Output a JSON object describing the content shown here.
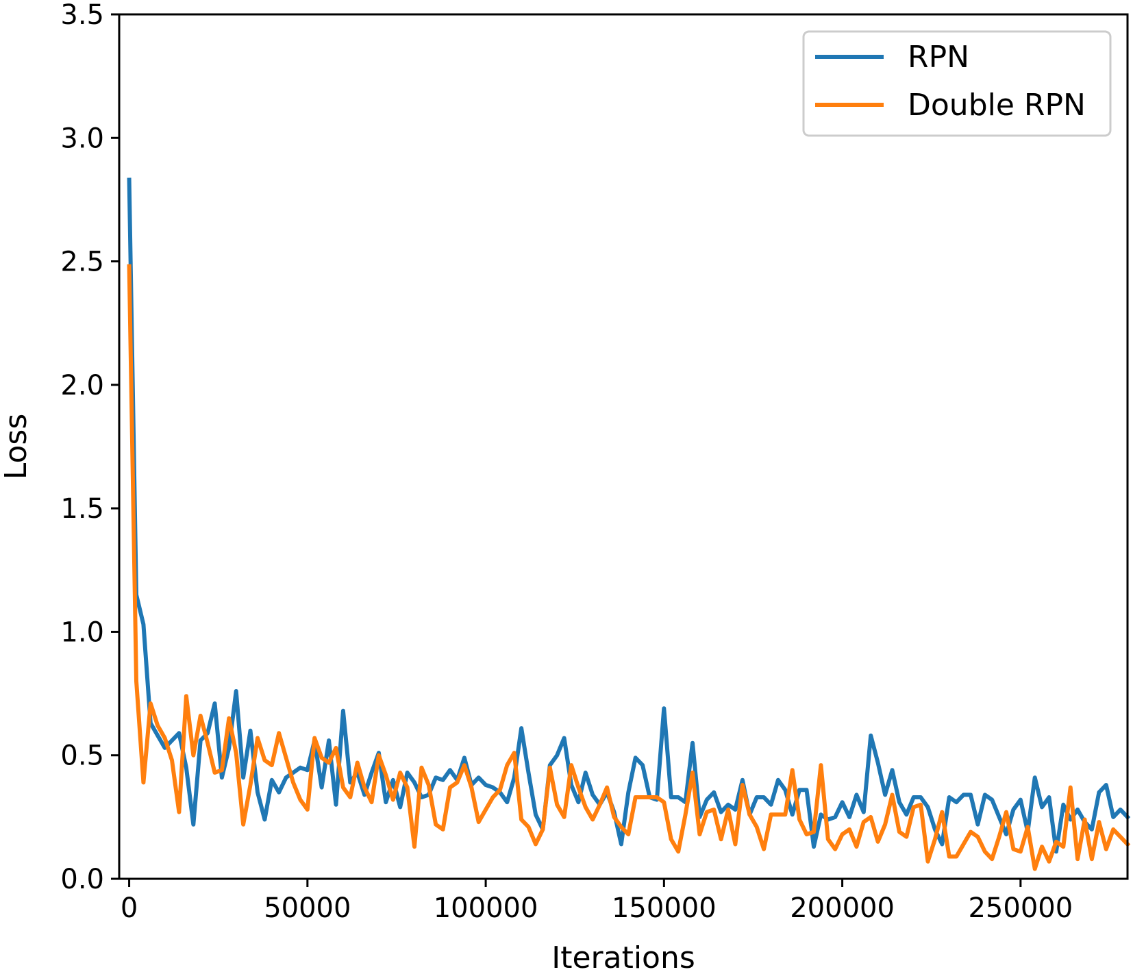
{
  "chart_data": {
    "type": "line",
    "title": "",
    "xlabel": "Iterations",
    "ylabel": "Loss",
    "xlim": [
      -2800,
      280000
    ],
    "ylim": [
      0,
      3.5
    ],
    "xticks": [
      0,
      50000,
      100000,
      150000,
      200000,
      250000
    ],
    "xtick_labels": [
      "0",
      "50000",
      "100000",
      "150000",
      "200000",
      "250000"
    ],
    "yticks": [
      0,
      0.5,
      1.0,
      1.5,
      2.0,
      2.5,
      3.0,
      3.5
    ],
    "ytick_labels": [
      "0.0",
      "0.5",
      "1.0",
      "1.5",
      "2.0",
      "2.5",
      "3.0",
      "3.5"
    ],
    "grid": false,
    "legend_position": "top-right",
    "x": [
      0,
      2000,
      4000,
      6000,
      8000,
      10000,
      12000,
      14000,
      16000,
      18000,
      20000,
      22000,
      24000,
      26000,
      28000,
      30000,
      32000,
      34000,
      36000,
      38000,
      40000,
      42000,
      44000,
      46000,
      48000,
      50000,
      52000,
      54000,
      56000,
      58000,
      60000,
      62000,
      64000,
      66000,
      68000,
      70000,
      72000,
      74000,
      76000,
      78000,
      80000,
      82000,
      84000,
      86000,
      88000,
      90000,
      92000,
      94000,
      96000,
      98000,
      100000,
      102000,
      104000,
      106000,
      108000,
      110000,
      112000,
      114000,
      116000,
      118000,
      120000,
      122000,
      124000,
      126000,
      128000,
      130000,
      132000,
      134000,
      136000,
      138000,
      140000,
      142000,
      144000,
      146000,
      148000,
      150000,
      152000,
      154000,
      156000,
      158000,
      160000,
      162000,
      164000,
      166000,
      168000,
      170000,
      172000,
      174000,
      176000,
      178000,
      180000,
      182000,
      184000,
      186000,
      188000,
      190000,
      192000,
      194000,
      196000,
      198000,
      200000,
      202000,
      204000,
      206000,
      208000,
      210000,
      212000,
      214000,
      216000,
      218000,
      220000,
      222000,
      224000,
      226000,
      228000,
      230000,
      232000,
      234000,
      236000,
      238000,
      240000,
      242000,
      244000,
      246000,
      248000,
      250000,
      252000,
      254000,
      256000,
      258000,
      260000,
      262000,
      264000,
      266000,
      268000,
      270000,
      272000,
      274000,
      276000,
      278000,
      280000
    ],
    "series": [
      {
        "name": "RPN",
        "color": "#1f77b4",
        "values": [
          2.83,
          1.15,
          1.03,
          0.63,
          0.58,
          0.53,
          0.56,
          0.59,
          0.45,
          0.22,
          0.56,
          0.59,
          0.71,
          0.41,
          0.53,
          0.76,
          0.41,
          0.6,
          0.35,
          0.24,
          0.4,
          0.35,
          0.41,
          0.43,
          0.45,
          0.44,
          0.56,
          0.37,
          0.56,
          0.3,
          0.68,
          0.39,
          0.43,
          0.34,
          0.43,
          0.51,
          0.31,
          0.4,
          0.29,
          0.43,
          0.39,
          0.33,
          0.34,
          0.41,
          0.4,
          0.44,
          0.4,
          0.49,
          0.38,
          0.41,
          0.38,
          0.37,
          0.35,
          0.31,
          0.41,
          0.61,
          0.43,
          0.26,
          0.2,
          0.46,
          0.5,
          0.57,
          0.38,
          0.31,
          0.43,
          0.34,
          0.3,
          0.35,
          0.27,
          0.14,
          0.35,
          0.49,
          0.46,
          0.33,
          0.32,
          0.69,
          0.33,
          0.33,
          0.31,
          0.55,
          0.25,
          0.32,
          0.35,
          0.27,
          0.3,
          0.28,
          0.4,
          0.26,
          0.33,
          0.33,
          0.3,
          0.4,
          0.36,
          0.26,
          0.36,
          0.36,
          0.13,
          0.26,
          0.24,
          0.25,
          0.31,
          0.25,
          0.34,
          0.27,
          0.58,
          0.47,
          0.34,
          0.44,
          0.31,
          0.26,
          0.33,
          0.33,
          0.29,
          0.2,
          0.14,
          0.33,
          0.31,
          0.34,
          0.34,
          0.22,
          0.34,
          0.32,
          0.25,
          0.18,
          0.28,
          0.32,
          0.19,
          0.41,
          0.29,
          0.33,
          0.11,
          0.3,
          0.24,
          0.28,
          0.23,
          0.2,
          0.35,
          0.38,
          0.25,
          0.28,
          0.25
        ]
      },
      {
        "name": "Double RPN",
        "color": "#ff7f0e",
        "values": [
          2.48,
          0.8,
          0.39,
          0.71,
          0.62,
          0.57,
          0.48,
          0.27,
          0.74,
          0.5,
          0.66,
          0.55,
          0.43,
          0.44,
          0.65,
          0.51,
          0.22,
          0.38,
          0.57,
          0.48,
          0.46,
          0.59,
          0.49,
          0.39,
          0.32,
          0.28,
          0.57,
          0.49,
          0.47,
          0.53,
          0.37,
          0.33,
          0.47,
          0.37,
          0.31,
          0.5,
          0.42,
          0.32,
          0.43,
          0.37,
          0.13,
          0.45,
          0.38,
          0.22,
          0.2,
          0.37,
          0.39,
          0.46,
          0.37,
          0.23,
          0.28,
          0.33,
          0.36,
          0.46,
          0.51,
          0.24,
          0.21,
          0.14,
          0.2,
          0.45,
          0.3,
          0.25,
          0.46,
          0.37,
          0.29,
          0.24,
          0.3,
          0.37,
          0.25,
          0.21,
          0.18,
          0.33,
          0.33,
          0.33,
          0.33,
          0.31,
          0.16,
          0.11,
          0.26,
          0.43,
          0.18,
          0.27,
          0.28,
          0.16,
          0.28,
          0.14,
          0.38,
          0.26,
          0.21,
          0.12,
          0.26,
          0.26,
          0.26,
          0.44,
          0.24,
          0.18,
          0.19,
          0.46,
          0.16,
          0.12,
          0.18,
          0.2,
          0.13,
          0.23,
          0.25,
          0.15,
          0.22,
          0.34,
          0.19,
          0.17,
          0.29,
          0.3,
          0.07,
          0.16,
          0.27,
          0.09,
          0.09,
          0.14,
          0.19,
          0.17,
          0.11,
          0.08,
          0.17,
          0.27,
          0.12,
          0.11,
          0.21,
          0.04,
          0.13,
          0.07,
          0.15,
          0.13,
          0.37,
          0.08,
          0.24,
          0.08,
          0.23,
          0.12,
          0.2,
          0.17,
          0.14
        ]
      }
    ]
  }
}
